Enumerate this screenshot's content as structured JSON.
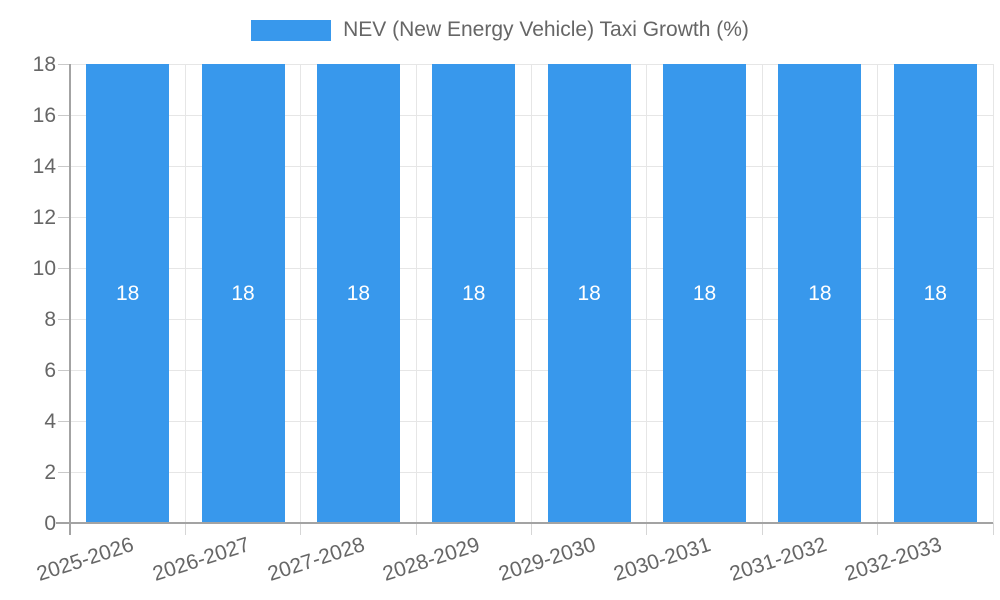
{
  "legend": {
    "label": "NEV (New Energy Vehicle) Taxi Growth (%)"
  },
  "chart_data": {
    "type": "bar",
    "title": "NEV (New Energy Vehicle) Taxi Growth (%)",
    "categories": [
      "2025-2026",
      "2026-2027",
      "2027-2028",
      "2028-2029",
      "2029-2030",
      "2030-2031",
      "2031-2032",
      "2032-2033"
    ],
    "series": [
      {
        "name": "NEV (New Energy Vehicle) Taxi Growth (%)",
        "values": [
          18,
          18,
          18,
          18,
          18,
          18,
          18,
          18
        ]
      }
    ],
    "values": [
      18,
      18,
      18,
      18,
      18,
      18,
      18,
      18
    ],
    "value_labels": [
      "18",
      "18",
      "18",
      "18",
      "18",
      "18",
      "18",
      "18"
    ],
    "xlabel": "",
    "ylabel": "",
    "ylim": [
      0,
      18
    ],
    "ytick_step": 2,
    "yticks": [
      0,
      2,
      4,
      6,
      8,
      10,
      12,
      14,
      16,
      18
    ],
    "grid": true,
    "legend_position": "top",
    "value_label_position": "center",
    "colors": {
      "bar": "#3898EC",
      "grid": "#E6E6E6",
      "axis": "#A3A3A3",
      "y_tick_mark": "#C9C9C9",
      "x_tick_mark": "#D6D6D6",
      "tick_text": "#666666",
      "legend_text": "#666666",
      "value_label": "#FFFFFF",
      "background": "#FFFFFF"
    }
  }
}
